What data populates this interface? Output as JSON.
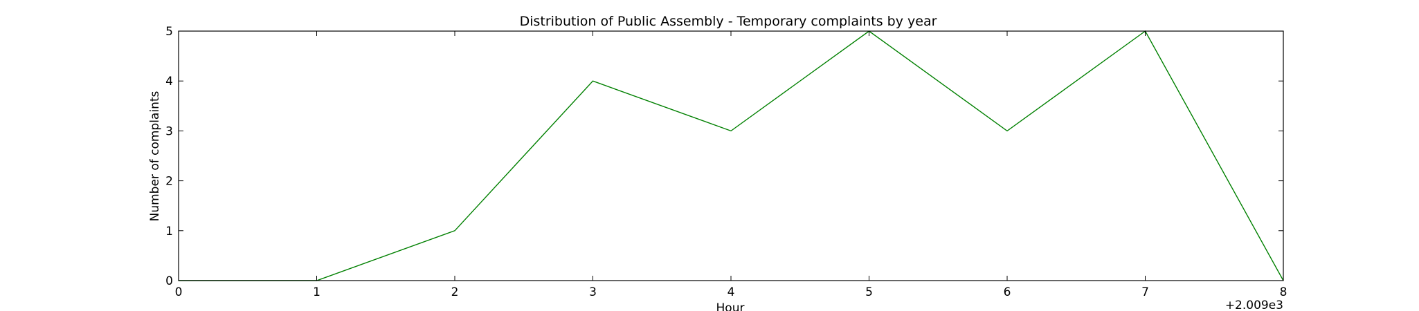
{
  "chart_data": {
    "type": "line",
    "title": "Distribution of  Public Assembly - Temporary complaints by year",
    "xlabel": "Hour",
    "ylabel": "Number of complaints",
    "offset_label": "+2.009e3",
    "x": [
      2009,
      2010,
      2011,
      2012,
      2013,
      2014,
      2015,
      2016,
      2017
    ],
    "series": [
      {
        "values": [
          0,
          0,
          1,
          4,
          3,
          5,
          3,
          5,
          0
        ],
        "color": "#008000"
      }
    ],
    "xlim": [
      2009,
      2017
    ],
    "ylim": [
      0,
      5
    ],
    "x_ticks": [
      "0",
      "1",
      "2",
      "3",
      "4",
      "5",
      "6",
      "7",
      "8"
    ],
    "y_ticks": [
      "0",
      "1",
      "2",
      "3",
      "4",
      "5"
    ],
    "grid": false,
    "legend": "none"
  }
}
